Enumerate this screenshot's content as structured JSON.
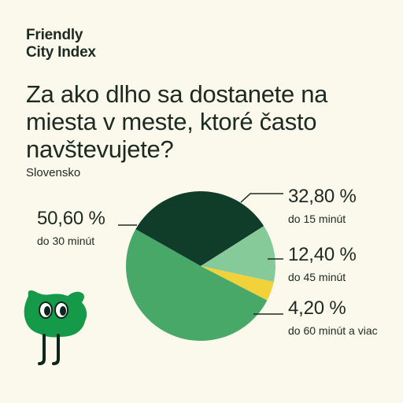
{
  "brand": {
    "line1": "Friendly",
    "line2": "City Index"
  },
  "question": "Za ako dlho sa dostanete na miesta v meste, ktoré často navštevujete?",
  "country": "Slovensko",
  "chart_data": {
    "type": "pie",
    "slices": [
      {
        "label": "do 15 minút",
        "value": 32.8,
        "display": "32,80 %",
        "color": "#0f3d2a"
      },
      {
        "label": "do 45 minút",
        "value": 12.4,
        "display": "12,40 %",
        "color": "#86ca9a"
      },
      {
        "label": "do 60 minút a viac",
        "value": 4.2,
        "display": "4,20 %",
        "color": "#f2d23b"
      },
      {
        "label": "do 30 minút",
        "value": 50.6,
        "display": "50,60 %",
        "color": "#48a868"
      }
    ]
  },
  "colors": {
    "background": "#fbf8ec",
    "leader_line": "#1d2a22",
    "mascot": "#159a4a"
  }
}
